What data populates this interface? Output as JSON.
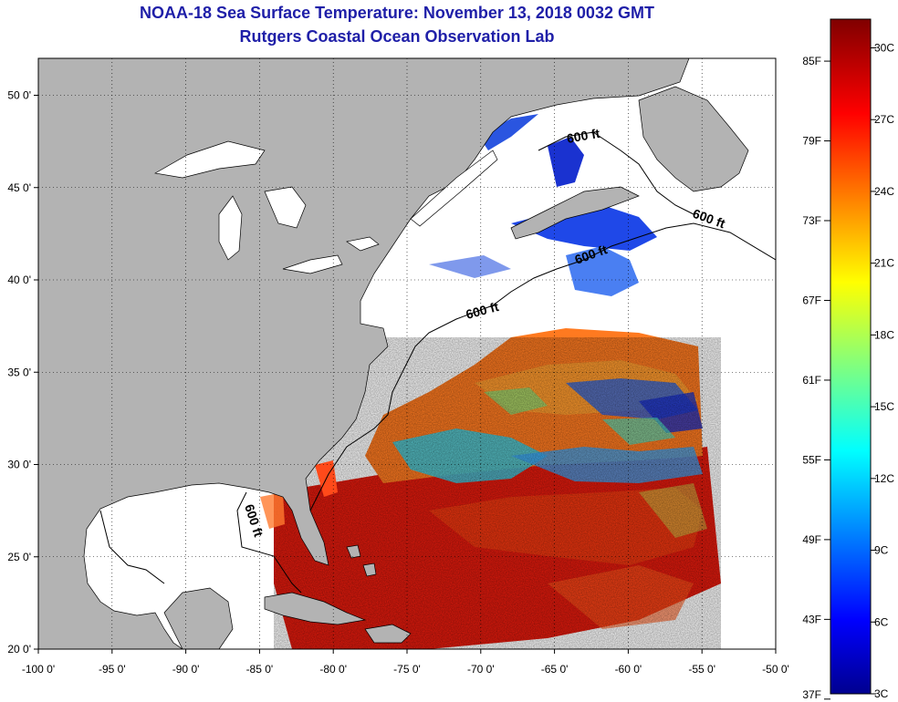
{
  "title_line1": "NOAA-18 Sea Surface Temperature:  November 13, 2018 0032 GMT",
  "title_line2": "Rutgers Coastal Ocean Observation Lab",
  "map": {
    "lon_ticks": [
      "-100 0'",
      "-95 0'",
      "-90 0'",
      "-85 0'",
      "-80 0'",
      "-75 0'",
      "-70 0'",
      "-65 0'",
      "-60 0'",
      "-55 0'",
      "-50 0'"
    ],
    "lat_ticks": [
      "50 0'",
      "45 0'",
      "40 0'",
      "35 0'",
      "30 0'",
      "25 0'",
      "20 0'"
    ],
    "lon_range": [
      -100,
      -50
    ],
    "lat_range": [
      20,
      52
    ],
    "contour_labels": [
      "600 ft",
      "600 ft",
      "600 ft",
      "600 ft",
      "600 ft"
    ],
    "colors": {
      "land": "#b3b3b3",
      "no_data": "#ffffff",
      "frame": "#000000"
    }
  },
  "colorbar": {
    "fahrenheit_labels": [
      "85F",
      "79F",
      "73F",
      "67F",
      "61F",
      "55F",
      "49F",
      "43F",
      "37F"
    ],
    "celsius_labels": [
      "30C",
      "27C",
      "24C",
      "21C",
      "18C",
      "15C",
      "12C",
      "9C",
      "6C",
      "3C"
    ],
    "colormap": [
      "#00008f",
      "#0000ff",
      "#00ffff",
      "#ffff00",
      "#ff0000",
      "#800000"
    ]
  }
}
